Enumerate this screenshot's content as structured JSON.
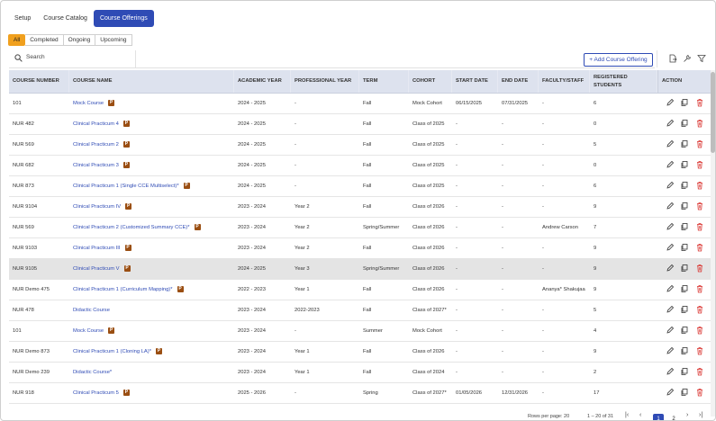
{
  "top_tabs": [
    "Setup",
    "Course Catalog",
    "Course Offerings"
  ],
  "active_top_tab": "Course Offerings",
  "filters": [
    "All",
    "Completed",
    "Ongoing",
    "Upcoming"
  ],
  "active_filter": "All",
  "search": {
    "placeholder": "Search"
  },
  "add_button": "+ Add Course Offering",
  "columns": [
    "COURSE NUMBER",
    "COURSE NAME",
    "ACADEMIC YEAR",
    "PROFESSIONAL YEAR",
    "TERM",
    "COHORT",
    "START DATE",
    "END DATE",
    "FACULTY/STAFF",
    "REGISTERED STUDENTS",
    "ACTION"
  ],
  "badge_label": "P",
  "rows": [
    {
      "number": "101",
      "name": "Mock Course",
      "ay": "2024 - 2025",
      "py": "-",
      "term": "Fall",
      "cohort": "Mock Cohort",
      "start": "06/15/2025",
      "end": "07/31/2025",
      "faculty": "-",
      "students": "6"
    },
    {
      "number": "NUR 482",
      "name": "Clinical Practicum 4",
      "ay": "2024 - 2025",
      "py": "-",
      "term": "Fall",
      "cohort": "Class of 2025",
      "start": "-",
      "end": "-",
      "faculty": "-",
      "students": "0"
    },
    {
      "number": "NUR 569",
      "name": "Clinical Practicum 2",
      "ay": "2024 - 2025",
      "py": "-",
      "term": "Fall",
      "cohort": "Class of 2025",
      "start": "-",
      "end": "-",
      "faculty": "-",
      "students": "5"
    },
    {
      "number": "NUR 682",
      "name": "Clinical Practicum 3",
      "ay": "2024 - 2025",
      "py": "-",
      "term": "Fall",
      "cohort": "Class of 2025",
      "start": "-",
      "end": "-",
      "faculty": "-",
      "students": "0"
    },
    {
      "number": "NUR 873",
      "name": "Clinical Practicum 1 (Single CCE Multiselect)*",
      "ay": "2024 - 2025",
      "py": "-",
      "term": "Fall",
      "cohort": "Class of 2025",
      "start": "-",
      "end": "-",
      "faculty": "-",
      "students": "6"
    },
    {
      "number": "NUR 9104",
      "name": "Clinical Practicum IV",
      "ay": "2023 - 2024",
      "py": "Year 2",
      "term": "Fall",
      "cohort": "Class of 2026",
      "start": "-",
      "end": "-",
      "faculty": "-",
      "students": "9"
    },
    {
      "number": "NUR 569",
      "name": "Clinical Practicum 2 (Customized Summary CCE)*",
      "ay": "2023 - 2024",
      "py": "Year 2",
      "term": "Spring/Summer",
      "cohort": "Class of 2026",
      "start": "-",
      "end": "-",
      "faculty": "Andrew Carson",
      "students": "7"
    },
    {
      "number": "NUR 9103",
      "name": "Clinical Practicum III",
      "ay": "2023 - 2024",
      "py": "Year 2",
      "term": "Fall",
      "cohort": "Class of 2026",
      "start": "-",
      "end": "-",
      "faculty": "-",
      "students": "9"
    },
    {
      "number": "NUR 9105",
      "name": "Clinical Practicum V",
      "ay": "2024 - 2025",
      "py": "Year 3",
      "term": "Spring/Summer",
      "cohort": "Class of 2026",
      "start": "-",
      "end": "-",
      "faculty": "-",
      "students": "9"
    },
    {
      "number": "NUR Demo 475",
      "name": "Clinical Practicum 1 (Curriculum Mapping)*",
      "ay": "2022 - 2023",
      "py": "Year 1",
      "term": "Fall",
      "cohort": "Class of 2026",
      "start": "-",
      "end": "-",
      "faculty": "Ananya* Shakujaa",
      "students": "9"
    },
    {
      "number": "NUR 478",
      "name": "Didactic Course",
      "ay": "2023 - 2024",
      "py": "2022-2023",
      "term": "Fall",
      "cohort": "Class of 2027*",
      "start": "-",
      "end": "-",
      "faculty": "-",
      "students": "5"
    },
    {
      "number": "101",
      "name": "Mock Course",
      "ay": "2023 - 2024",
      "py": "-",
      "term": "Summer",
      "cohort": "Mock Cohort",
      "start": "-",
      "end": "-",
      "faculty": "-",
      "students": "4"
    },
    {
      "number": "NUR Demo 873",
      "name": "Clinical Practicum 1 (Cloning LA)*",
      "ay": "2023 - 2024",
      "py": "Year 1",
      "term": "Fall",
      "cohort": "Class of 2026",
      "start": "-",
      "end": "-",
      "faculty": "-",
      "students": "9"
    },
    {
      "number": "NUR Demo 239",
      "name": "Didactic Course*",
      "ay": "2023 - 2024",
      "py": "Year 1",
      "term": "Fall",
      "cohort": "Class of 2024",
      "start": "-",
      "end": "-",
      "faculty": "-",
      "students": "2"
    },
    {
      "number": "NUR 918",
      "name": "Clinical Practicum 5",
      "ay": "2025 - 2026",
      "py": "-",
      "term": "Spring",
      "cohort": "Class of 2027*",
      "start": "01/05/2026",
      "end": "12/31/2026",
      "faculty": "-",
      "students": "17"
    }
  ],
  "row_badges": [
    true,
    true,
    true,
    true,
    true,
    true,
    true,
    true,
    true,
    true,
    false,
    true,
    true,
    false,
    true
  ],
  "highlighted_row": 8,
  "pagination": {
    "rows_per_page": "Rows per page: 20",
    "range": "1 – 20 of 31",
    "pages": [
      "1",
      "2"
    ],
    "active_page": "1"
  }
}
